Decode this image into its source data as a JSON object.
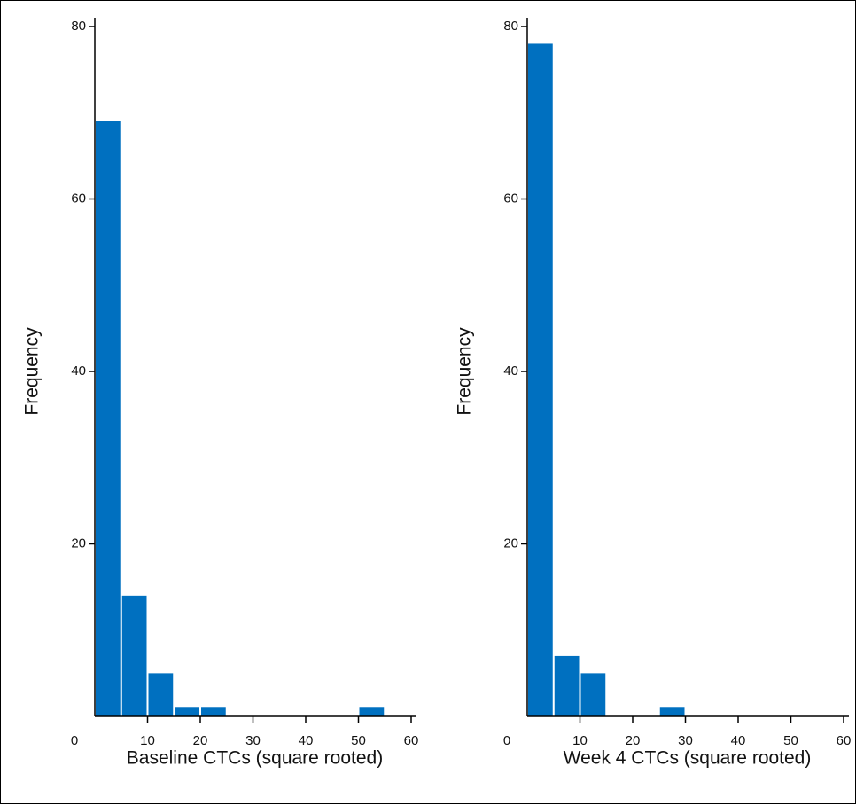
{
  "chart_data": [
    {
      "type": "histogram",
      "xlabel": "Baseline CTCs (square rooted)",
      "ylabel": "Frequency",
      "bins": [
        0,
        5,
        10,
        15,
        20,
        25,
        30,
        35,
        40,
        45,
        50,
        55,
        60
      ],
      "values": [
        69,
        14,
        5,
        1,
        1,
        0,
        0,
        0,
        0,
        0,
        1,
        0
      ],
      "color": "#0070c0",
      "xlim": [
        0,
        60
      ],
      "ylim": [
        0,
        80
      ],
      "xticks": [
        0,
        10,
        20,
        30,
        40,
        50,
        60
      ],
      "yticks": [
        20,
        40,
        60,
        80
      ]
    },
    {
      "type": "histogram",
      "xlabel": "Week 4 CTCs (square rooted)",
      "ylabel": "Frequency",
      "bins": [
        0,
        5,
        10,
        15,
        20,
        25,
        30,
        35,
        40,
        45,
        50,
        55,
        60
      ],
      "values": [
        78,
        7,
        5,
        0,
        0,
        1,
        0,
        0,
        0,
        0,
        0,
        0
      ],
      "color": "#0070c0",
      "xlim": [
        0,
        60
      ],
      "ylim": [
        0,
        80
      ],
      "xticks": [
        0,
        10,
        20,
        30,
        40,
        50,
        60
      ],
      "yticks": [
        20,
        40,
        60,
        80
      ]
    }
  ]
}
